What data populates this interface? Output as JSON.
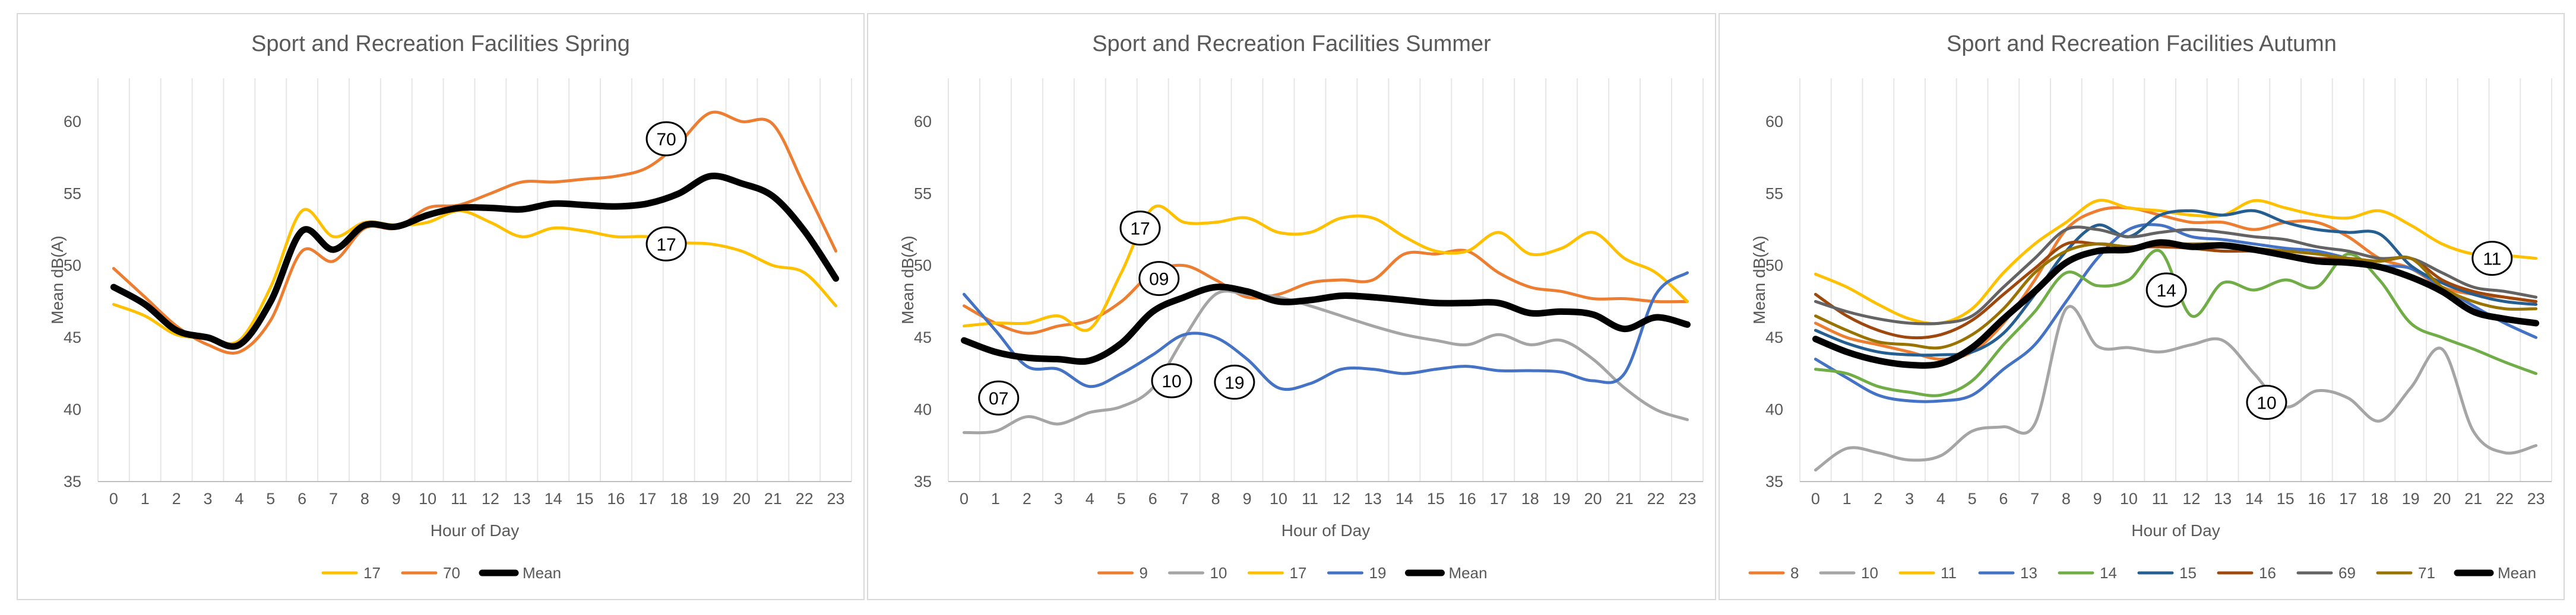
{
  "chart_data": [
    {
      "type": "line",
      "title": "Sport and Recreation Facilities Spring",
      "xlabel": "Hour of Day",
      "ylabel": "Mean dB(A)",
      "ylim": [
        35,
        63
      ],
      "yticks": [
        35,
        40,
        45,
        50,
        55,
        60
      ],
      "grid": "vertical",
      "legend_position": "bottom",
      "x": [
        0,
        1,
        2,
        3,
        4,
        5,
        6,
        7,
        8,
        9,
        10,
        11,
        12,
        13,
        14,
        15,
        16,
        17,
        18,
        19,
        20,
        21,
        22,
        23
      ],
      "series": [
        {
          "name": "17",
          "color": "#FFC000",
          "width": 5,
          "values": [
            47.3,
            46.5,
            45.2,
            45.0,
            44.8,
            48.5,
            53.8,
            52.0,
            53.0,
            52.8,
            53.0,
            53.8,
            53.0,
            52.0,
            52.6,
            52.4,
            52.0,
            52.0,
            51.6,
            51.5,
            51.0,
            50.0,
            49.5,
            47.2
          ]
        },
        {
          "name": "70",
          "color": "#ED7D31",
          "width": 5,
          "values": [
            49.8,
            47.8,
            45.8,
            44.5,
            44.0,
            46.2,
            51.0,
            50.3,
            52.6,
            52.6,
            54.0,
            54.2,
            55.0,
            55.8,
            55.8,
            56.0,
            56.2,
            56.8,
            58.5,
            60.6,
            60.0,
            59.8,
            55.5,
            51.0
          ]
        },
        {
          "name": "Mean",
          "color": "#000000",
          "width": 11,
          "values": [
            48.5,
            47.3,
            45.5,
            45.0,
            44.5,
            47.5,
            52.4,
            51.1,
            52.8,
            52.7,
            53.5,
            54.0,
            54.0,
            53.9,
            54.3,
            54.2,
            54.1,
            54.3,
            55.0,
            56.2,
            55.7,
            54.8,
            52.4,
            49.1
          ]
        }
      ],
      "annotations": [
        {
          "label": "70",
          "x": 17.6,
          "y": 58.8
        },
        {
          "label": "17",
          "x": 17.6,
          "y": 51.5
        }
      ]
    },
    {
      "type": "line",
      "title": "Sport and Recreation Facilities Summer",
      "xlabel": "Hour of Day",
      "ylabel": "Mean dB(A)",
      "ylim": [
        35,
        63
      ],
      "yticks": [
        35,
        40,
        45,
        50,
        55,
        60
      ],
      "grid": "vertical",
      "legend_position": "bottom",
      "x": [
        0,
        1,
        2,
        3,
        4,
        5,
        6,
        7,
        8,
        9,
        10,
        11,
        12,
        13,
        14,
        15,
        16,
        17,
        18,
        19,
        20,
        21,
        22,
        23
      ],
      "series": [
        {
          "name": "9",
          "color": "#ED7D31",
          "width": 5,
          "values": [
            47.2,
            46.0,
            45.3,
            45.8,
            46.2,
            47.5,
            49.5,
            50.0,
            49.0,
            47.8,
            48.0,
            48.8,
            49.0,
            49.0,
            50.8,
            50.8,
            51.0,
            49.5,
            48.5,
            48.2,
            47.7,
            47.7,
            47.5,
            47.5
          ]
        },
        {
          "name": "10",
          "color": "#A5A5A5",
          "width": 5,
          "values": [
            38.4,
            38.5,
            39.5,
            39.0,
            39.8,
            40.2,
            41.5,
            45.0,
            48.0,
            48.0,
            47.8,
            47.2,
            46.5,
            45.8,
            45.2,
            44.8,
            44.5,
            45.2,
            44.5,
            44.8,
            43.5,
            41.5,
            40.0,
            39.3
          ]
        },
        {
          "name": "17",
          "color": "#FFC000",
          "width": 5,
          "values": [
            45.8,
            46.0,
            46.0,
            46.5,
            45.6,
            49.5,
            54.0,
            53.0,
            53.0,
            53.3,
            52.3,
            52.3,
            53.3,
            53.3,
            52.0,
            51.0,
            51.0,
            52.3,
            50.8,
            51.2,
            52.3,
            50.5,
            49.5,
            47.5
          ]
        },
        {
          "name": "19",
          "color": "#4472C4",
          "width": 5,
          "values": [
            48.0,
            45.5,
            43.0,
            42.8,
            41.6,
            42.5,
            43.8,
            45.2,
            45.0,
            43.5,
            41.5,
            41.8,
            42.8,
            42.8,
            42.5,
            42.8,
            43.0,
            42.7,
            42.7,
            42.6,
            42.0,
            42.5,
            48.0,
            49.5
          ]
        },
        {
          "name": "Mean",
          "color": "#000000",
          "width": 11,
          "values": [
            44.8,
            44.0,
            43.6,
            43.5,
            43.4,
            44.6,
            46.8,
            47.8,
            48.5,
            48.2,
            47.5,
            47.6,
            47.9,
            47.8,
            47.6,
            47.4,
            47.4,
            47.4,
            46.7,
            46.8,
            46.6,
            45.6,
            46.4,
            45.9
          ]
        }
      ],
      "annotations": [
        {
          "label": "07",
          "x": 1.1,
          "y": 40.8
        },
        {
          "label": "17",
          "x": 5.6,
          "y": 52.6
        },
        {
          "label": "09",
          "x": 6.2,
          "y": 49.1
        },
        {
          "label": "10",
          "x": 6.6,
          "y": 42.0
        },
        {
          "label": "19",
          "x": 8.6,
          "y": 41.9
        }
      ]
    },
    {
      "type": "line",
      "title": "Sport and Recreation Facilities Autumn",
      "xlabel": "Hour of Day",
      "ylabel": "Mean dB(A)",
      "ylim": [
        35,
        63
      ],
      "yticks": [
        35,
        40,
        45,
        50,
        55,
        60
      ],
      "grid": "vertical",
      "legend_position": "bottom",
      "x": [
        0,
        1,
        2,
        3,
        4,
        5,
        6,
        7,
        8,
        9,
        10,
        11,
        12,
        13,
        14,
        15,
        16,
        17,
        18,
        19,
        20,
        21,
        22,
        23
      ],
      "series": [
        {
          "name": "8",
          "color": "#ED7D31",
          "width": 5,
          "values": [
            46.0,
            45.0,
            44.5,
            44.0,
            43.5,
            44.0,
            46.0,
            49.0,
            52.5,
            53.8,
            54.0,
            53.5,
            53.0,
            53.0,
            52.5,
            53.0,
            53.0,
            52.0,
            50.5,
            49.8,
            48.5,
            48.0,
            47.8,
            47.5
          ]
        },
        {
          "name": "10",
          "color": "#A5A5A5",
          "width": 5,
          "values": [
            35.8,
            37.3,
            37.0,
            36.5,
            36.8,
            38.5,
            38.8,
            39.0,
            47.0,
            44.4,
            44.3,
            44.0,
            44.5,
            44.8,
            42.5,
            40.2,
            41.3,
            40.8,
            39.2,
            41.5,
            44.2,
            38.5,
            37.0,
            37.5
          ]
        },
        {
          "name": "11",
          "color": "#FFC000",
          "width": 5,
          "values": [
            49.4,
            48.5,
            47.3,
            46.3,
            46.0,
            47.0,
            49.5,
            51.5,
            53.0,
            54.5,
            54.0,
            53.8,
            53.5,
            53.5,
            54.5,
            54.0,
            53.5,
            53.3,
            53.8,
            52.8,
            51.5,
            50.8,
            50.7,
            50.5
          ]
        },
        {
          "name": "13",
          "color": "#4472C4",
          "width": 5,
          "values": [
            43.5,
            42.2,
            41.0,
            40.6,
            40.6,
            41.0,
            42.8,
            44.5,
            47.5,
            50.5,
            52.5,
            52.8,
            52.0,
            51.8,
            51.5,
            51.2,
            51.0,
            50.5,
            50.0,
            49.8,
            48.5,
            47.2,
            46.0,
            45.0
          ]
        },
        {
          "name": "14",
          "color": "#70AD47",
          "width": 5,
          "values": [
            42.8,
            42.5,
            41.6,
            41.2,
            41.0,
            42.0,
            44.5,
            46.8,
            49.5,
            48.6,
            49.0,
            51.0,
            46.5,
            48.8,
            48.3,
            49.0,
            48.5,
            50.8,
            49.0,
            46.0,
            45.0,
            44.2,
            43.3,
            42.5
          ]
        },
        {
          "name": "15",
          "color": "#255E91",
          "width": 5,
          "values": [
            45.5,
            44.6,
            44.0,
            43.8,
            43.8,
            44.0,
            45.3,
            48.0,
            51.0,
            52.8,
            52.0,
            53.5,
            53.8,
            53.5,
            53.8,
            53.0,
            52.5,
            52.3,
            52.2,
            50.0,
            48.8,
            48.0,
            47.5,
            47.3
          ]
        },
        {
          "name": "16",
          "color": "#9E480E",
          "width": 5,
          "values": [
            48.0,
            46.5,
            45.5,
            45.0,
            45.2,
            46.2,
            48.0,
            49.8,
            51.5,
            51.5,
            51.3,
            51.3,
            51.2,
            51.0,
            51.0,
            50.8,
            50.5,
            50.5,
            50.3,
            50.5,
            49.0,
            48.2,
            47.8,
            47.5
          ]
        },
        {
          "name": "69",
          "color": "#636363",
          "width": 5,
          "values": [
            47.5,
            46.8,
            46.3,
            46.0,
            46.0,
            46.5,
            48.5,
            50.5,
            52.5,
            52.5,
            52.0,
            52.3,
            52.5,
            52.3,
            52.0,
            51.8,
            51.3,
            51.0,
            50.5,
            50.5,
            49.5,
            48.5,
            48.2,
            47.8
          ]
        },
        {
          "name": "71",
          "color": "#997300",
          "width": 5,
          "values": [
            46.5,
            45.5,
            44.7,
            44.5,
            44.3,
            45.2,
            47.0,
            49.5,
            51.0,
            51.5,
            51.3,
            51.5,
            51.5,
            51.5,
            51.2,
            51.0,
            50.8,
            50.5,
            50.3,
            50.5,
            48.5,
            47.5,
            47.0,
            47.0
          ]
        },
        {
          "name": "Mean",
          "color": "#000000",
          "width": 11,
          "values": [
            44.9,
            44.0,
            43.4,
            43.1,
            43.2,
            44.3,
            46.3,
            48.2,
            50.2,
            51.0,
            51.1,
            51.6,
            51.3,
            51.4,
            51.1,
            50.7,
            50.3,
            50.2,
            49.9,
            49.2,
            48.2,
            46.8,
            46.3,
            46.0
          ]
        }
      ],
      "annotations": [
        {
          "label": "14",
          "x": 11.2,
          "y": 48.3
        },
        {
          "label": "10",
          "x": 14.4,
          "y": 40.5
        },
        {
          "label": "11",
          "x": 21.6,
          "y": 50.5
        }
      ]
    }
  ]
}
